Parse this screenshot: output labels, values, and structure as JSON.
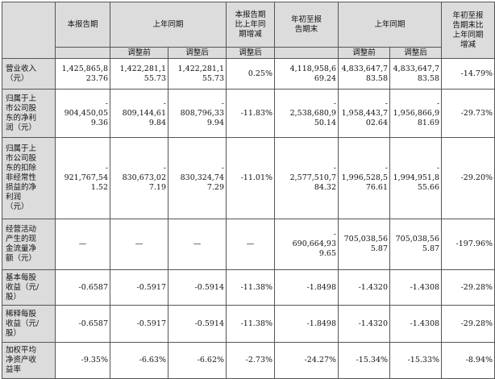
{
  "headers": {
    "period": "本报告期",
    "prev_period": "上年同期",
    "change_period": [
      "本报告期",
      "比上年同",
      "期增减"
    ],
    "ytd": [
      "年初至报",
      "告期末"
    ],
    "prev_ytd": "上年同期",
    "change_ytd": [
      "年初至报",
      "告期末比",
      "上年同期",
      "增减"
    ],
    "before_adj": "调整前",
    "after_adj": "调整后",
    "after_adj_col": "调整后"
  },
  "rows": [
    {
      "label": [
        "营业收入",
        "（元）"
      ],
      "values": [
        [
          "1,425,865,8",
          "23.76"
        ],
        [
          "1,422,281,1",
          "55.73"
        ],
        [
          "1,422,281,1",
          "55.73"
        ],
        [
          "0.25%"
        ],
        [
          "4,118,958,6",
          "69.24"
        ],
        [
          "4,833,647,7",
          "83.58"
        ],
        [
          "4,833,647,7",
          "83.58"
        ],
        [
          "-14.79%"
        ]
      ]
    },
    {
      "label": [
        "归属于上",
        "市公司股",
        "东的净利",
        "润（元）"
      ],
      "values": [
        [
          "-",
          "904,450,05",
          "9.36"
        ],
        [
          "-",
          "809,144,61",
          "9.84"
        ],
        [
          "-",
          "808,796,33",
          "9.94"
        ],
        [
          "-11.83%"
        ],
        [
          "-",
          "2,538,680,9",
          "50.14"
        ],
        [
          "-",
          "1,958,443,7",
          "02.64"
        ],
        [
          "-",
          "1,956,866,9",
          "81.69"
        ],
        [
          "-29.73%"
        ]
      ]
    },
    {
      "label": [
        "归属于上",
        "市公司股",
        "东的扣除",
        "非经常性",
        "损益的净",
        "利润",
        "（元）"
      ],
      "values": [
        [
          "-",
          "921,767,54",
          "1.52"
        ],
        [
          "-",
          "830,673,02",
          "7.19"
        ],
        [
          "-",
          "830,324,74",
          "7.29"
        ],
        [
          "-11.01%"
        ],
        [
          "-",
          "2,577,510,7",
          "84.32"
        ],
        [
          "-",
          "1,996,528,5",
          "76.61"
        ],
        [
          "-",
          "1,994,951,8",
          "55.66"
        ],
        [
          "-29.20%"
        ]
      ]
    },
    {
      "label": [
        "经营活动",
        "产生的现",
        "金流量净",
        "额（元）"
      ],
      "values": [
        [
          "—"
        ],
        [
          "—"
        ],
        [
          "—"
        ],
        [
          "—"
        ],
        [
          "-",
          "690,664,93",
          "9.65"
        ],
        [
          "705,038,56",
          "5.87"
        ],
        [
          "705,038,56",
          "5.87"
        ],
        [
          "-197.96%"
        ]
      ]
    },
    {
      "label": [
        "基本每股",
        "收益（元/",
        "股）"
      ],
      "values": [
        [
          "-0.6587"
        ],
        [
          "-0.5917"
        ],
        [
          "-0.5914"
        ],
        [
          "-11.38%"
        ],
        [
          "-1.8498"
        ],
        [
          "-1.4320"
        ],
        [
          "-1.4308"
        ],
        [
          "-29.28%"
        ]
      ]
    },
    {
      "label": [
        "稀释每股",
        "收益（元/",
        "股）"
      ],
      "values": [
        [
          "-0.6587"
        ],
        [
          "-0.5917"
        ],
        [
          "-0.5914"
        ],
        [
          "-11.38%"
        ],
        [
          "-1.8498"
        ],
        [
          "-1.4320"
        ],
        [
          "-1.4308"
        ],
        [
          "-29.28%"
        ]
      ]
    },
    {
      "label": [
        "加权平均",
        "净资产收",
        "益率"
      ],
      "values": [
        [
          "-9.35%"
        ],
        [
          "-6.63%"
        ],
        [
          "-6.62%"
        ],
        [
          "-2.73%"
        ],
        [
          "-24.27%"
        ],
        [
          "-15.34%"
        ],
        [
          "-15.33%"
        ],
        [
          "-8.94%"
        ]
      ]
    }
  ]
}
